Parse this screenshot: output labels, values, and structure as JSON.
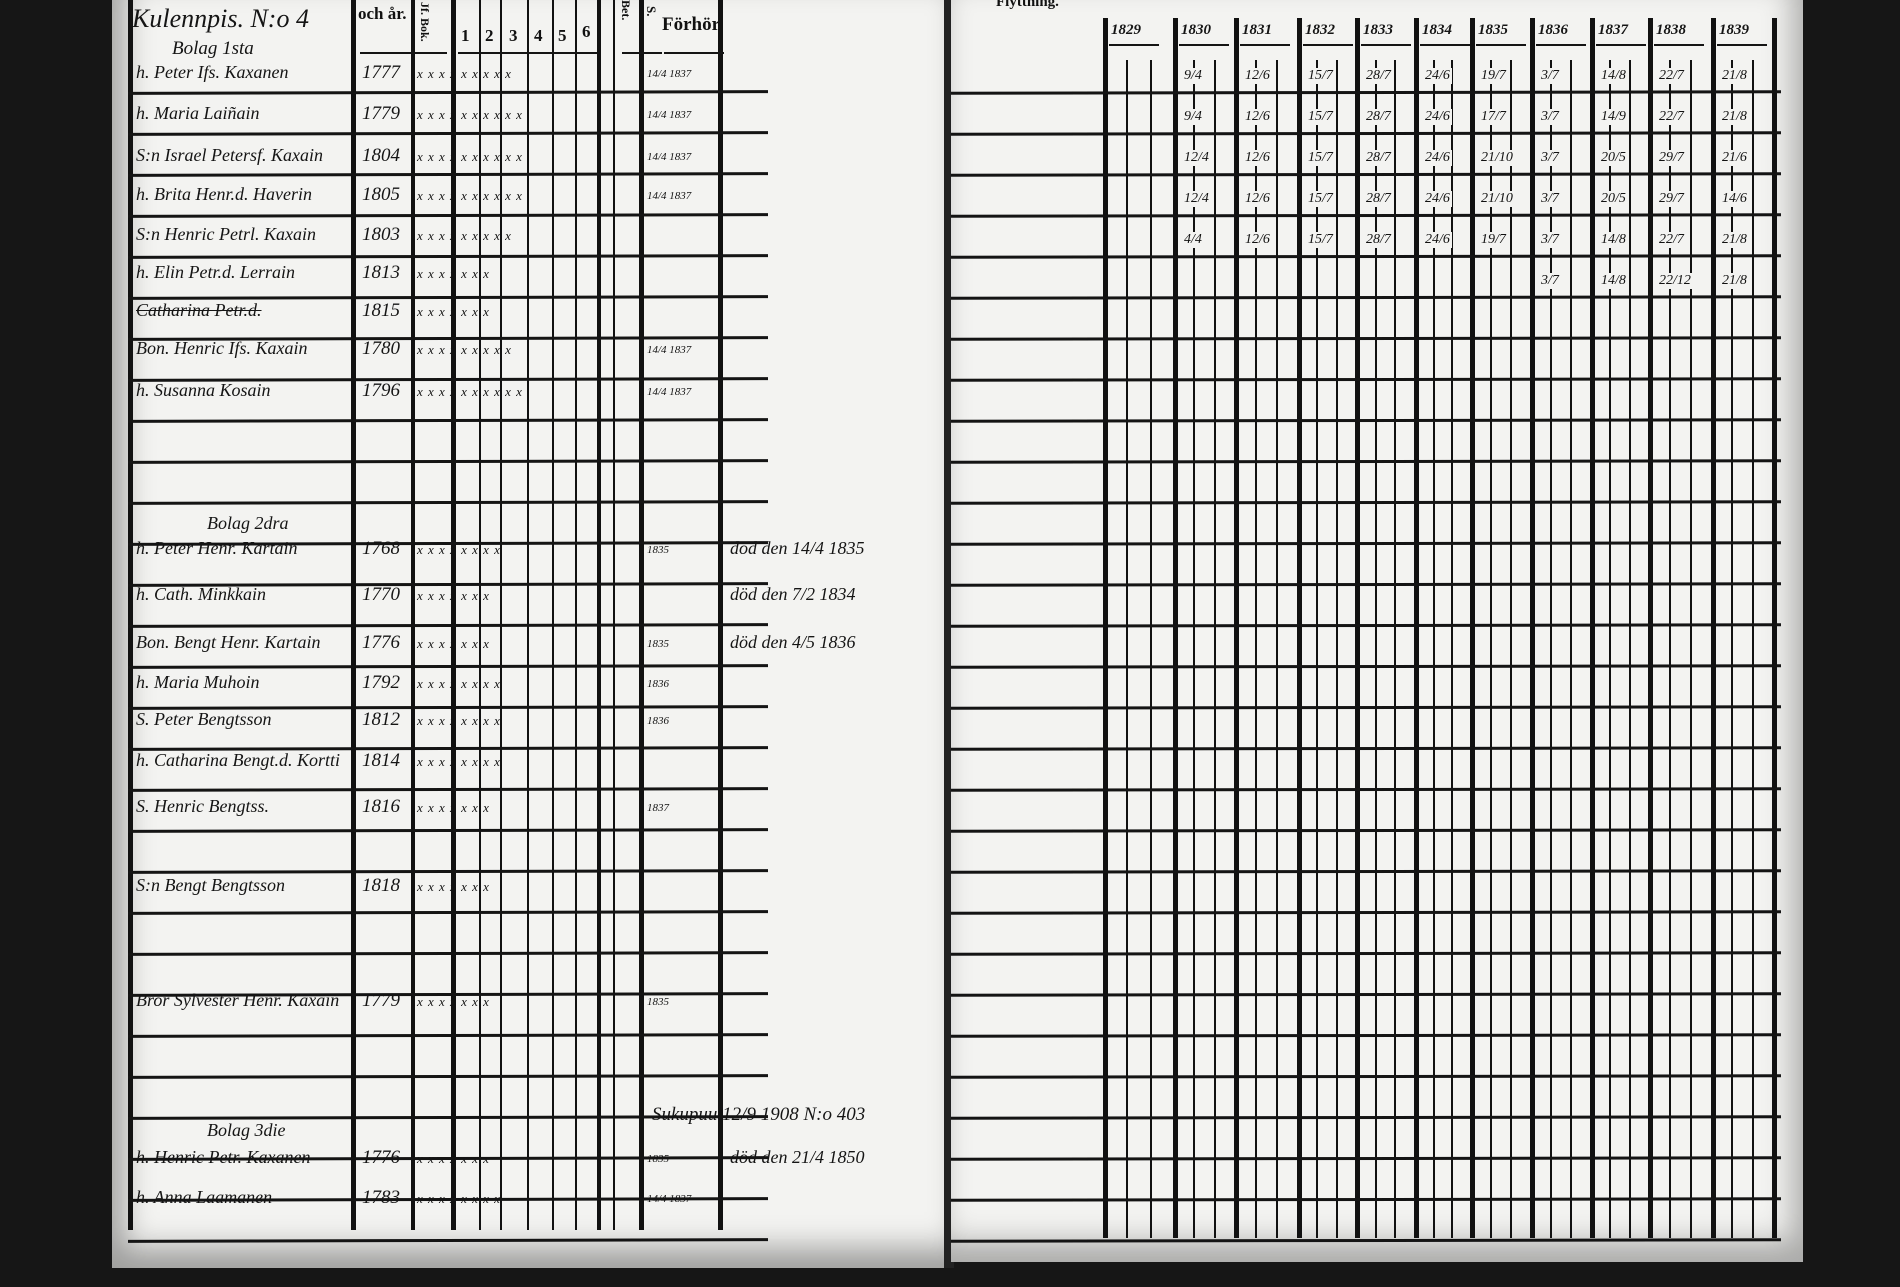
{
  "left_page": {
    "title": "Kulennpis. N:o 4",
    "section_1": "Bolag 1sta",
    "section_2": "Bolag 2dra",
    "section_3": "Bolag 3die",
    "columns": {
      "born": "och år.",
      "book": "Jf. Bok.",
      "c1": "1",
      "c2": "2",
      "c3": "3",
      "c4": "4",
      "c5": "5",
      "c6": "6",
      "bet": "Bet.",
      "s": "S.",
      "forhor": "Förhör."
    },
    "rows": [
      {
        "name": "h. Peter Ifs. Kaxanen",
        "year": "1777",
        "marks": "x x x x x x x x x",
        "forhor": "14/4 1837",
        "note": ""
      },
      {
        "name": "h. Maria Laiñain",
        "year": "1779",
        "marks": "x x x x x x x x x x",
        "forhor": "14/4 1837",
        "note": ""
      },
      {
        "name": "S:n Israel Petersf. Kaxain",
        "year": "1804",
        "marks": "x x x x x x x x x x",
        "forhor": "14/4 1837",
        "note": ""
      },
      {
        "name": "h. Brita Henr.d. Haverin",
        "year": "1805",
        "marks": "x x x x x x x x x x",
        "forhor": "14/4 1837",
        "note": ""
      },
      {
        "name": "S:n Henric Petrl. Kaxain",
        "year": "1803",
        "marks": "x x x x x x x x x",
        "forhor": "",
        "note": ""
      },
      {
        "name": "h. Elin Petr.d. Lerrain",
        "year": "1813",
        "marks": "x x x x x x x",
        "forhor": "",
        "note": ""
      },
      {
        "name": "Catharina Petr.d.",
        "year": "1815",
        "marks": "x x x x x x x",
        "forhor": "",
        "note": ""
      },
      {
        "name": "Bon. Henric Ifs. Kaxain",
        "year": "1780",
        "marks": "x x x x x x x x x",
        "forhor": "14/4 1837",
        "note": ""
      },
      {
        "name": "h. Susanna Kosain",
        "year": "1796",
        "marks": "x x x x x x x x x x",
        "forhor": "14/4 1837",
        "note": ""
      },
      {
        "name": "h. Peter Henr. Kartain",
        "year": "1768",
        "marks": "x x x x x x x x",
        "forhor": "1835",
        "note": "död den 14/4 1835"
      },
      {
        "name": "h. Cath. Minkkain",
        "year": "1770",
        "marks": "x x x x x x x",
        "forhor": "",
        "note": "död den 7/2 1834"
      },
      {
        "name": "Bon. Bengt Henr. Kartain",
        "year": "1776",
        "marks": "x x x x x x x",
        "forhor": "1835",
        "note": "död den 4/5 1836"
      },
      {
        "name": "h. Maria Muhoin",
        "year": "1792",
        "marks": "x x x x x x x x",
        "forhor": "1836",
        "note": ""
      },
      {
        "name": "S. Peter Bengtsson",
        "year": "1812",
        "marks": "x x x x x x x x",
        "forhor": "1836",
        "note": ""
      },
      {
        "name": "h. Catharina Bengt.d. Kortti",
        "year": "1814",
        "marks": "x x x x x x x x",
        "forhor": "",
        "note": ""
      },
      {
        "name": "S. Henric Bengtss.",
        "year": "1816",
        "marks": "x x x x x x x",
        "forhor": "1837",
        "note": ""
      },
      {
        "name": "S:n Bengt Bengtsson",
        "year": "1818",
        "marks": "x x x x x x x",
        "forhor": "",
        "note": ""
      },
      {
        "name": "Bror Sylvester Henr. Kaxain",
        "year": "1779",
        "marks": "x x x x x x x",
        "forhor": "1835",
        "note": ""
      },
      {
        "name": "h. Henric Petr. Kaxanen",
        "year": "1776",
        "marks": "x x x x x x x",
        "forhor": "1835",
        "note": "död den 21/4 1850"
      },
      {
        "name": "h. Anna Laamanen",
        "year": "1783",
        "marks": "x x x x x x x x",
        "forhor": "14/4 1837",
        "note": ""
      }
    ],
    "archive_note": "Sukupuu 12/9 1908 N:o 403"
  },
  "right_page": {
    "header": "Flyttning.",
    "years": [
      "1829",
      "1830",
      "1831",
      "1832",
      "1833",
      "1834",
      "1835",
      "1836",
      "1837",
      "1838",
      "1839"
    ],
    "entries": [
      [
        "",
        "9/4",
        "12/6",
        "15/7",
        "28/7",
        "24/6",
        "19/7",
        "3/7",
        "14/8",
        "22/7",
        "21/8"
      ],
      [
        "",
        "9/4",
        "12/6",
        "15/7",
        "28/7",
        "24/6",
        "17/7",
        "3/7",
        "14/9",
        "22/7",
        "21/8"
      ],
      [
        "",
        "12/4",
        "12/6",
        "15/7",
        "28/7",
        "24/6",
        "21/10",
        "3/7",
        "20/5",
        "29/7",
        "21/6"
      ],
      [
        "",
        "12/4",
        "12/6",
        "15/7",
        "28/7",
        "24/6",
        "21/10",
        "3/7",
        "20/5",
        "29/7",
        "14/6"
      ],
      [
        "",
        "4/4",
        "12/6",
        "15/7",
        "28/7",
        "24/6",
        "19/7",
        "3/7",
        "14/8",
        "22/7",
        "21/8"
      ],
      [
        "",
        "",
        "",
        "",
        "",
        "",
        "",
        "3/7",
        "14/8",
        "22/12",
        "21/8"
      ]
    ]
  },
  "colors": {
    "paper": "#f3f3f1",
    "ink": "#111111",
    "background": "#161616"
  }
}
